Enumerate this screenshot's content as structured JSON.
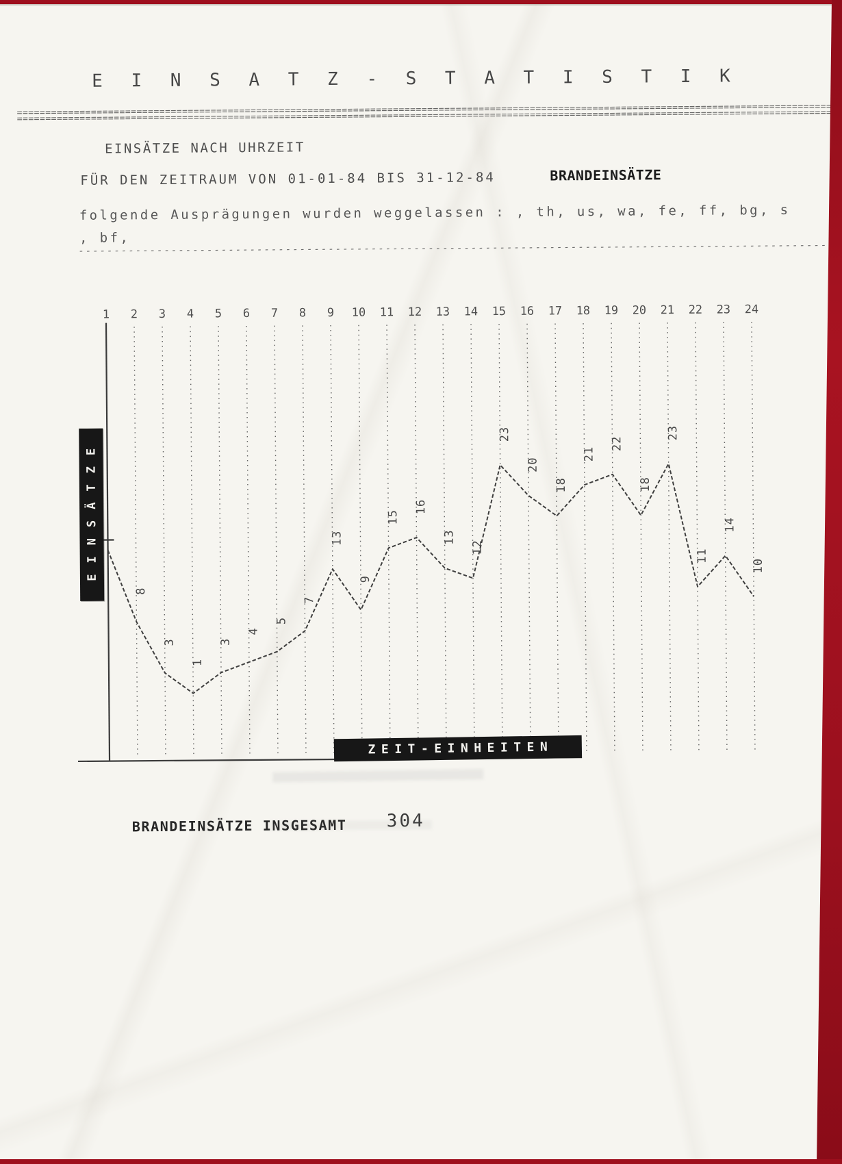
{
  "document": {
    "title": "E I N S A T Z - S T A T I S T I K",
    "section_heading": "EINSÄTZE NACH UHRZEIT",
    "period_line": "FÜR DEN ZEITRAUM VON  01-01-84 BIS 31-12-84",
    "category_label": "BRANDEINSÄTZE",
    "omitted_values_line1": "folgende Ausprägungen wurden weggelassen : , th, us, wa, fe, ff, bg, s",
    "omitted_values_line2": ", bf,"
  },
  "chart_data": {
    "type": "line",
    "title": "",
    "xlabel": "ZEIT-EINHEITEN",
    "ylabel": "EINSÄTZE",
    "x": [
      1,
      2,
      3,
      4,
      5,
      6,
      7,
      8,
      9,
      10,
      11,
      12,
      13,
      14,
      15,
      16,
      17,
      18,
      19,
      20,
      21,
      22,
      23,
      24
    ],
    "values": [
      15,
      8,
      3,
      1,
      3,
      4,
      5,
      7,
      13,
      9,
      15,
      16,
      13,
      12,
      23,
      20,
      18,
      21,
      22,
      18,
      23,
      11,
      14,
      10
    ],
    "point_labels_rotated": true,
    "line_style": "dashed",
    "grid": "vertical-dotted-per-hour",
    "ylim": [
      0,
      26
    ],
    "total": 304
  },
  "footer": {
    "total_label": "BRANDEINSÄTZE INSGESAMT",
    "total_value": "304"
  }
}
